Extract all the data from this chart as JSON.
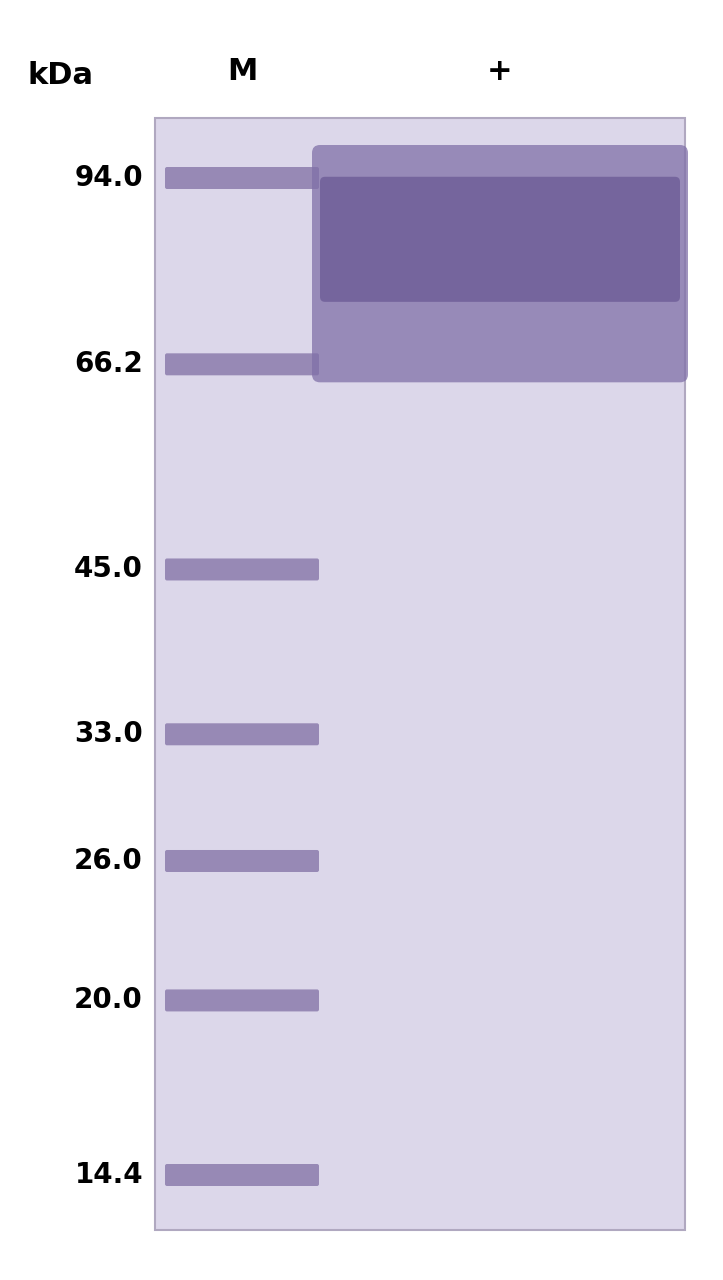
{
  "background_color": "#ffffff",
  "gel_background": "#dcd7ea",
  "gel_border_color": "#b0a8c0",
  "kda_label": "kDa",
  "m_label": "M",
  "plus_label": "+",
  "marker_kda": [
    94.0,
    66.2,
    45.0,
    33.0,
    26.0,
    20.0,
    14.4
  ],
  "marker_band_color": "#8878aa",
  "sample_band_color": "#8070a8",
  "sample_band_dark": "#5a4888",
  "figure_width": 7.23,
  "figure_height": 12.8,
  "dpi": 100,
  "label_fontsize": 22,
  "kda_tick_fontsize": 20
}
